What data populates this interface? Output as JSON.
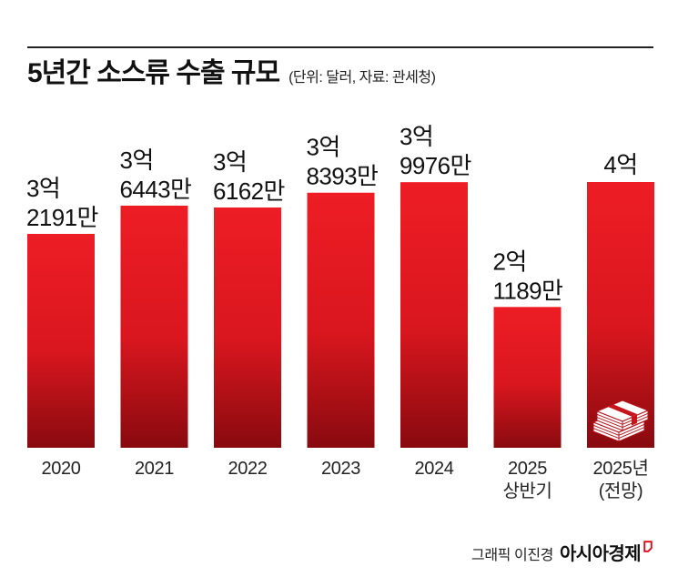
{
  "credit": {
    "graphic": "그래픽 이진경",
    "brand": "아시아경제"
  },
  "colors": {
    "bar_top": "#ee1d25",
    "bar_mid": "#d9161e",
    "bar_bottom": "#880a0f",
    "text": "#111111",
    "rule": "#222222",
    "logo_mark": "#e60012"
  },
  "forecast_icon": "money-stack-icon",
  "chart_data": {
    "type": "bar",
    "title": "5년간 소스류 수출 규모",
    "subtitle": "(단위: 달러, 자료: 관세청)",
    "categories": [
      [
        "2020"
      ],
      [
        "2021"
      ],
      [
        "2022"
      ],
      [
        "2023"
      ],
      [
        "2024"
      ],
      [
        "2025",
        "상반기"
      ],
      [
        "2025년",
        "(전망)"
      ]
    ],
    "values": [
      321910000,
      364430000,
      361620000,
      383930000,
      399760000,
      211890000,
      400000000
    ],
    "labels": [
      [
        "3억",
        "2191만"
      ],
      [
        "3억",
        "6443만"
      ],
      [
        "3억",
        "6162만"
      ],
      [
        "3억",
        "8393만"
      ],
      [
        "3억",
        "9976만"
      ],
      [
        "2억",
        "1189만"
      ],
      [
        "4억"
      ]
    ],
    "ylim": [
      0,
      400000000
    ],
    "grid": false,
    "legend": "none"
  }
}
